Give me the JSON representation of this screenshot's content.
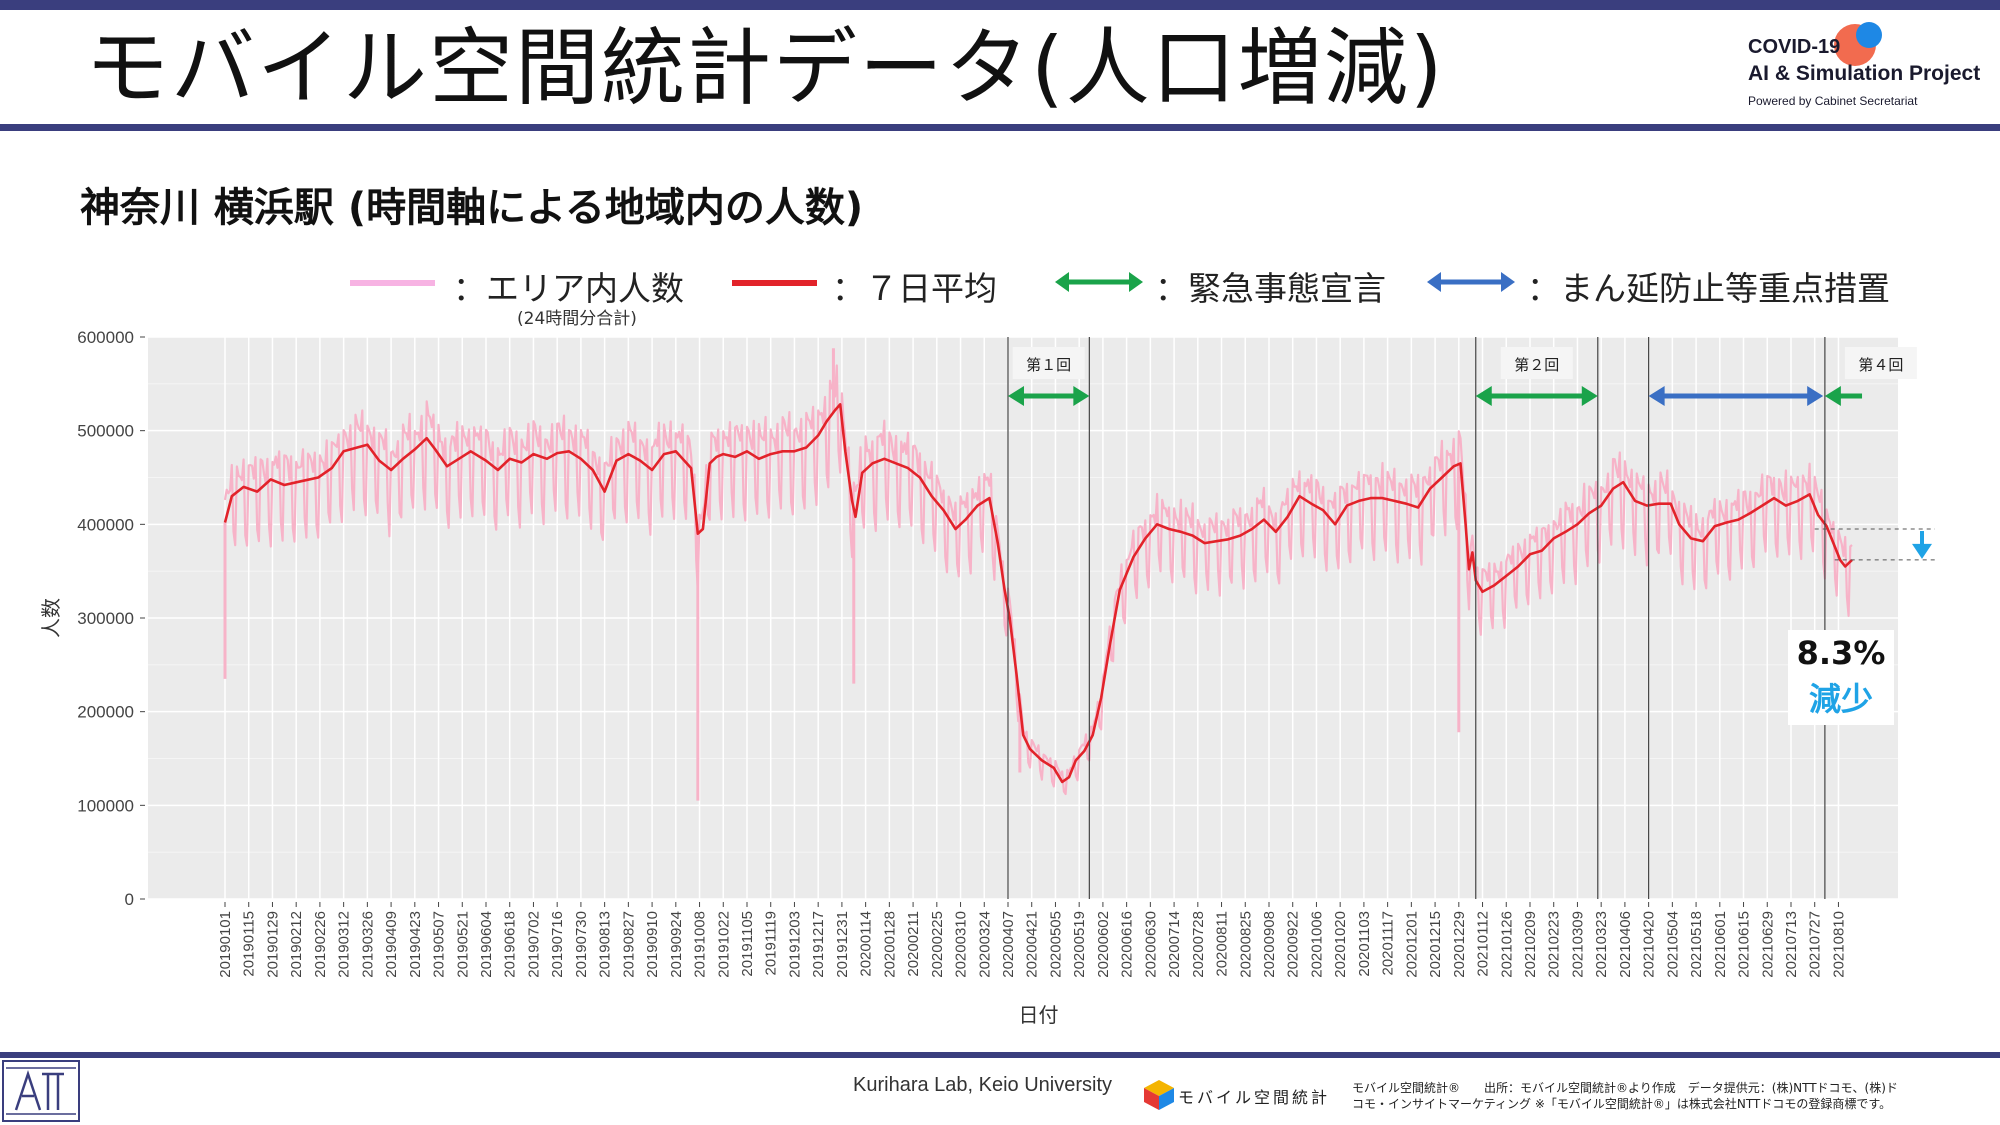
{
  "slide": {
    "title": "モバイル空間統計データ(人口増減)",
    "subtitle": "神奈川 横浜駅 (時間軸による地域内の人数)"
  },
  "logo": {
    "line1": "COVID-19",
    "line2": "AI & Simulation Project",
    "line3": "Powered by Cabinet Secretariat"
  },
  "legend": {
    "items": [
      {
        "label": "：エリア内人数",
        "note": "(24時間分合計)",
        "color": "#f7b3e3"
      },
      {
        "label": "：７日平均",
        "note": "",
        "color": "#e2232a"
      },
      {
        "label": "：緊急事態宣言",
        "note": "",
        "color": "#1aa34a"
      },
      {
        "label": "：まん延防止等重点措置",
        "note": "",
        "color": "#3a6fc4"
      }
    ]
  },
  "result": {
    "value": "8.3%",
    "label": "減少",
    "color": "#1fa3e6"
  },
  "footer": {
    "lab": "Kurihara Lab, Keio University",
    "brand": "モバイル空間統計",
    "credit_line1": "モバイル空間統計®　　出所：モバイル空間統計®より作成　データ提供元：(株)NTTドコモ、(株)ド",
    "credit_line2": "コモ・インサイトマーケティング ※「モバイル空間統計®」は株式会社NTTドコモの登録商標です。"
  },
  "chart_data": {
    "type": "line",
    "xlabel": "日付",
    "ylabel": "人数",
    "ylim": [
      0,
      600000
    ],
    "yticks": [
      0,
      100000,
      200000,
      300000,
      400000,
      500000,
      600000
    ],
    "date_start": "20190101",
    "date_end": "20210818",
    "xticks": [
      "20190101",
      "20190115",
      "20190129",
      "20190212",
      "20190226",
      "20190312",
      "20190326",
      "20190409",
      "20190423",
      "20190507",
      "20190521",
      "20190604",
      "20190618",
      "20190702",
      "20190716",
      "20190730",
      "20190813",
      "20190827",
      "20190910",
      "20190924",
      "20191008",
      "20191022",
      "20191105",
      "20191119",
      "20191203",
      "20191217",
      "20191231",
      "20200114",
      "20200128",
      "20200211",
      "20200225",
      "20200310",
      "20200324",
      "20200407",
      "20200421",
      "20200505",
      "20200519",
      "20200602",
      "20200616",
      "20200630",
      "20200714",
      "20200728",
      "20200811",
      "20200825",
      "20200908",
      "20200922",
      "20201006",
      "20201020",
      "20201103",
      "20201117",
      "20201201",
      "20201215",
      "20201229",
      "20210112",
      "20210126",
      "20210209",
      "20210223",
      "20210309",
      "20210323",
      "20210406",
      "20210420",
      "20210504",
      "20210518",
      "20210601",
      "20210615",
      "20210629",
      "20210713",
      "20210727",
      "20210810"
    ],
    "grid": true,
    "series": [
      {
        "name": "：７日平均",
        "color": "#e2232a",
        "points": [
          [
            "20190101",
            402000
          ],
          [
            "20190105",
            430000
          ],
          [
            "20190112",
            440000
          ],
          [
            "20190120",
            435000
          ],
          [
            "20190128",
            448000
          ],
          [
            "20190205",
            442000
          ],
          [
            "20190215",
            446000
          ],
          [
            "20190225",
            450000
          ],
          [
            "20190305",
            460000
          ],
          [
            "20190312",
            478000
          ],
          [
            "20190320",
            482000
          ],
          [
            "20190326",
            485000
          ],
          [
            "20190402",
            468000
          ],
          [
            "20190409",
            458000
          ],
          [
            "20190416",
            470000
          ],
          [
            "20190423",
            480000
          ],
          [
            "20190430",
            492000
          ],
          [
            "20190505",
            480000
          ],
          [
            "20190512",
            462000
          ],
          [
            "20190519",
            470000
          ],
          [
            "20190526",
            478000
          ],
          [
            "20190604",
            468000
          ],
          [
            "20190611",
            458000
          ],
          [
            "20190618",
            470000
          ],
          [
            "20190625",
            466000
          ],
          [
            "20190702",
            475000
          ],
          [
            "20190710",
            470000
          ],
          [
            "20190716",
            476000
          ],
          [
            "20190723",
            478000
          ],
          [
            "20190730",
            470000
          ],
          [
            "20190806",
            458000
          ],
          [
            "20190813",
            435000
          ],
          [
            "20190820",
            468000
          ],
          [
            "20190827",
            475000
          ],
          [
            "20190903",
            468000
          ],
          [
            "20190910",
            458000
          ],
          [
            "20190917",
            475000
          ],
          [
            "20190924",
            478000
          ],
          [
            "20190928",
            470000
          ],
          [
            "20191003",
            460000
          ],
          [
            "20191007",
            390000
          ],
          [
            "20191010",
            395000
          ],
          [
            "20191014",
            465000
          ],
          [
            "20191018",
            472000
          ],
          [
            "20191022",
            475000
          ],
          [
            "20191029",
            472000
          ],
          [
            "20191105",
            478000
          ],
          [
            "20191112",
            470000
          ],
          [
            "20191119",
            475000
          ],
          [
            "20191126",
            478000
          ],
          [
            "20191203",
            478000
          ],
          [
            "20191210",
            482000
          ],
          [
            "20191217",
            495000
          ],
          [
            "20191222",
            510000
          ],
          [
            "20191227",
            522000
          ],
          [
            "20191230",
            528000
          ],
          [
            "20200102",
            478000
          ],
          [
            "20200106",
            425000
          ],
          [
            "20200108",
            408000
          ],
          [
            "20200112",
            455000
          ],
          [
            "20200118",
            465000
          ],
          [
            "20200125",
            470000
          ],
          [
            "20200201",
            465000
          ],
          [
            "20200208",
            460000
          ],
          [
            "20200215",
            450000
          ],
          [
            "20200222",
            430000
          ],
          [
            "20200229",
            415000
          ],
          [
            "20200307",
            395000
          ],
          [
            "20200313",
            405000
          ],
          [
            "20200320",
            420000
          ],
          [
            "20200327",
            428000
          ],
          [
            "20200401",
            380000
          ],
          [
            "20200405",
            330000
          ],
          [
            "20200408",
            300000
          ],
          [
            "20200412",
            240000
          ],
          [
            "20200416",
            175000
          ],
          [
            "20200420",
            160000
          ],
          [
            "20200427",
            148000
          ],
          [
            "20200504",
            140000
          ],
          [
            "20200509",
            125000
          ],
          [
            "20200513",
            130000
          ],
          [
            "20200517",
            148000
          ],
          [
            "20200522",
            158000
          ],
          [
            "20200527",
            175000
          ],
          [
            "20200601",
            215000
          ],
          [
            "20200606",
            270000
          ],
          [
            "20200612",
            330000
          ],
          [
            "20200620",
            365000
          ],
          [
            "20200627",
            385000
          ],
          [
            "20200704",
            400000
          ],
          [
            "20200711",
            395000
          ],
          [
            "20200718",
            392000
          ],
          [
            "20200725",
            388000
          ],
          [
            "20200801",
            380000
          ],
          [
            "20200808",
            382000
          ],
          [
            "20200815",
            384000
          ],
          [
            "20200822",
            388000
          ],
          [
            "20200829",
            395000
          ],
          [
            "20200905",
            405000
          ],
          [
            "20200912",
            392000
          ],
          [
            "20200919",
            408000
          ],
          [
            "20200926",
            430000
          ],
          [
            "20201003",
            422000
          ],
          [
            "20201010",
            415000
          ],
          [
            "20201017",
            400000
          ],
          [
            "20201024",
            420000
          ],
          [
            "20201031",
            425000
          ],
          [
            "20201107",
            428000
          ],
          [
            "20201114",
            428000
          ],
          [
            "20201121",
            425000
          ],
          [
            "20201128",
            422000
          ],
          [
            "20201205",
            418000
          ],
          [
            "20201212",
            438000
          ],
          [
            "20201219",
            450000
          ],
          [
            "20201226",
            462000
          ],
          [
            "20201230",
            465000
          ],
          [
            "20210102",
            400000
          ],
          [
            "20210104",
            352000
          ],
          [
            "20210106",
            370000
          ],
          [
            "20210108",
            340000
          ],
          [
            "20210112",
            328000
          ],
          [
            "20210119",
            335000
          ],
          [
            "20210126",
            345000
          ],
          [
            "20210202",
            355000
          ],
          [
            "20210209",
            368000
          ],
          [
            "20210216",
            372000
          ],
          [
            "20210223",
            385000
          ],
          [
            "20210302",
            392000
          ],
          [
            "20210309",
            400000
          ],
          [
            "20210316",
            412000
          ],
          [
            "20210323",
            420000
          ],
          [
            "20210330",
            438000
          ],
          [
            "20210405",
            445000
          ],
          [
            "20210412",
            425000
          ],
          [
            "20210419",
            420000
          ],
          [
            "20210426",
            422000
          ],
          [
            "20210503",
            422000
          ],
          [
            "20210508",
            400000
          ],
          [
            "20210515",
            385000
          ],
          [
            "20210522",
            382000
          ],
          [
            "20210529",
            398000
          ],
          [
            "20210605",
            402000
          ],
          [
            "20210612",
            405000
          ],
          [
            "20210619",
            412000
          ],
          [
            "20210626",
            420000
          ],
          [
            "20210703",
            428000
          ],
          [
            "20210710",
            420000
          ],
          [
            "20210717",
            425000
          ],
          [
            "20210724",
            432000
          ],
          [
            "20210729",
            410000
          ],
          [
            "20210803",
            398000
          ],
          [
            "20210807",
            380000
          ],
          [
            "20210811",
            362000
          ],
          [
            "20210814",
            355000
          ],
          [
            "20210818",
            362000
          ]
        ]
      },
      {
        "name": "：エリア内人数",
        "color": "#f7b3c8",
        "spikes": [
          [
            "20190101",
            235000
          ],
          [
            "20191007",
            105000
          ],
          [
            "20200107",
            230000
          ],
          [
            "20200414",
            135000
          ],
          [
            "20201229",
            178000
          ]
        ],
        "peaks": [
          [
            "20191226",
            588000
          ]
        ]
      }
    ],
    "periods": [
      {
        "label": "第１回",
        "type": "緊急事態宣言",
        "start": "20200407",
        "end": "20200525",
        "color": "#1aa34a"
      },
      {
        "label": "第２回",
        "type": "緊急事態宣言",
        "start": "20210108",
        "end": "20210321",
        "color": "#1aa34a"
      },
      {
        "label": "",
        "type": "まん延防止等重点措置",
        "start": "20210420",
        "end": "20210801",
        "color": "#3a6fc4"
      },
      {
        "label": "第４回",
        "type": "緊急事態宣言",
        "start": "20210802",
        "end": "20210831",
        "color": "#1aa34a"
      }
    ],
    "annotation": {
      "text": "8.3% 減少",
      "from": 395000,
      "to": 362000
    }
  }
}
